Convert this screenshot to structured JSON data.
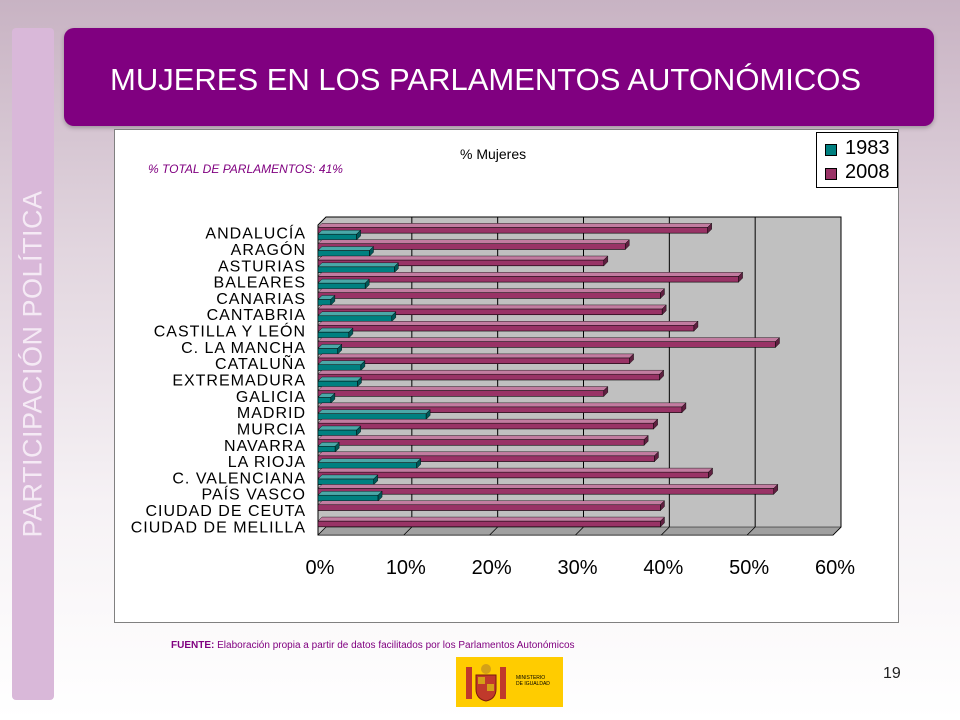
{
  "slide": {
    "title": "MUJERES EN LOS PARLAMENTOS  AUTONÓMICOS",
    "side_label": "PARTICIPACIÓN POLÍTICA",
    "source_label": "FUENTE:",
    "source_text": " Elaboración propia a partir de datos facilitados por los Parlamentos Autonómicos",
    "page_number": "19",
    "logo_text": "MINISTERIO\nDE IGUALDAD"
  },
  "colors": {
    "title_bg": "#800080",
    "series_1983": "#008080",
    "series_2008": "#993366",
    "plot_wall": "#c0c0c0"
  },
  "chart_data": {
    "type": "bar",
    "orientation": "horizontal",
    "title": "% Mujeres",
    "subtitle": "% TOTAL DE PARLAMENTOS: 41%",
    "xlabel": "",
    "ylabel": "",
    "xlim": [
      0,
      60
    ],
    "ticks": [
      "0%",
      "10%",
      "20%",
      "30%",
      "40%",
      "50%",
      "60%"
    ],
    "tick_values": [
      0,
      10,
      20,
      30,
      40,
      50,
      60
    ],
    "grid": true,
    "legend": "top-right",
    "categories": [
      "ANDALUCÍA",
      "ARAGÓN",
      "ASTURIAS",
      "BALEARES",
      "CANARIAS",
      "CANTABRIA",
      "CASTILLA Y LEÓN",
      "C. LA MANCHA",
      "CATALUÑA",
      "EXTREMADURA",
      "GALICIA",
      "MADRID",
      "MURCIA",
      "NAVARRA",
      "LA RIOJA",
      "C. VALENCIANA",
      "PAÍS VASCO",
      "CIUDAD DE CEUTA",
      "CIUDAD DE MELILLA"
    ],
    "series": [
      {
        "name": "1983",
        "values": [
          4.5,
          6,
          8.9,
          5.5,
          1.5,
          8.6,
          3.6,
          2.3,
          5,
          4.6,
          1.5,
          12.6,
          4.5,
          2,
          11.5,
          6.5,
          7,
          0,
          0
        ]
      },
      {
        "name": "2008",
        "values": [
          45.4,
          35.8,
          33.3,
          49,
          39.9,
          40.1,
          43.8,
          53.3,
          36.3,
          39.8,
          33.3,
          42.4,
          39.1,
          38,
          39.2,
          45.5,
          53.1,
          39.9,
          39.9
        ]
      }
    ]
  }
}
